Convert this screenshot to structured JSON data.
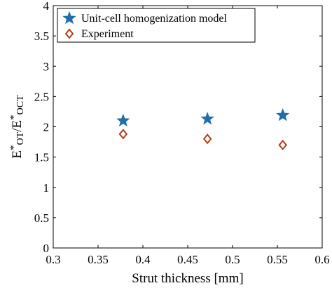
{
  "chart_data": {
    "type": "scatter",
    "xlabel": "Strut thickness [mm]",
    "ylabel": {
      "parts": [
        {
          "text": "E",
          "style": "normal"
        },
        {
          "text": "*",
          "style": "sup"
        },
        {
          "text": "OT",
          "style": "sub"
        },
        {
          "text": "/E",
          "style": "normal"
        },
        {
          "text": "*",
          "style": "sup"
        },
        {
          "text": "OCT",
          "style": "sub"
        }
      ]
    },
    "xlim": [
      0.3,
      0.6
    ],
    "ylim": [
      0,
      4
    ],
    "xticks": [
      "0.3",
      "0.35",
      "0.4",
      "0.45",
      "0.5",
      "0.55",
      "0.6"
    ],
    "yticks": [
      "0",
      "0.5",
      "1",
      "1.5",
      "2",
      "2.5",
      "3",
      "3.5",
      "4"
    ],
    "grid": false,
    "legend_position": "top-left",
    "series": [
      {
        "name": "Unit-cell homogenization model",
        "marker": "star",
        "color": "#1f6fa8",
        "x": [
          0.378,
          0.472,
          0.556
        ],
        "y": [
          2.1,
          2.13,
          2.19
        ]
      },
      {
        "name": "Experiment",
        "marker": "diamond",
        "color": "#b33a16",
        "x": [
          0.378,
          0.472,
          0.556
        ],
        "y": [
          1.88,
          1.8,
          1.7
        ]
      }
    ]
  }
}
